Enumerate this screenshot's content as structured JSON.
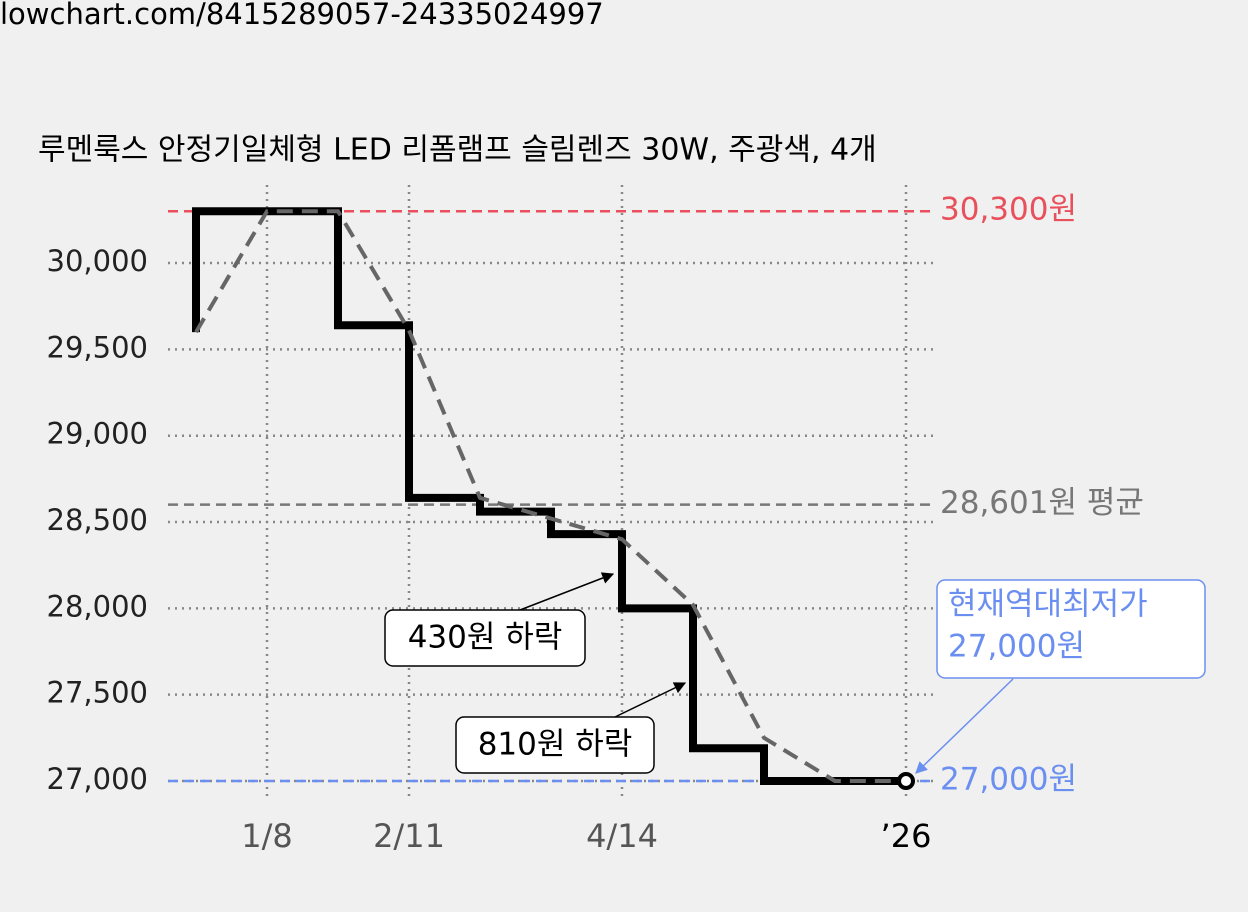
{
  "url": "lowchart.com/8415289057-24335024997",
  "chart_data": {
    "type": "line",
    "step": true,
    "title": "루멘룩스 안정기일체형 LED 리폼램프 슬림렌즈 30W, 주광색, 4개",
    "categories": [
      null,
      "1/8",
      null,
      "2/11",
      null,
      null,
      "4/14",
      null,
      null,
      null,
      "’26"
    ],
    "series": [
      {
        "color": "#000000",
        "values": [
          29600,
          30300,
          30300,
          29640,
          28640,
          28560,
          28430,
          28000,
          27190,
          27000,
          27000
        ]
      },
      {
        "color": "#666666",
        "values": [
          29600,
          30300,
          30300,
          29610,
          28640,
          28520,
          28400,
          28020,
          27250,
          27000,
          27000
        ]
      }
    ],
    "ylim": [
      26890,
      30452
    ],
    "yticks": [
      {
        "value": 27000,
        "label": "27,000"
      },
      {
        "value": 27500,
        "label": "27,500"
      },
      {
        "value": 28000,
        "label": "28,000"
      },
      {
        "value": 28500,
        "label": "28,500"
      },
      {
        "value": 29000,
        "label": "29,000"
      },
      {
        "value": 29500,
        "label": "29,500"
      },
      {
        "value": 30000,
        "label": "30,000"
      }
    ],
    "grid": true,
    "reference_lines": [
      {
        "value": 30300,
        "label": "30,300원",
        "color": "#e8505b"
      },
      {
        "value": 28601,
        "label": "28,601원 평균",
        "color": "#777777"
      },
      {
        "value": 27000,
        "label": "27,000원",
        "color": "#6b8ff0"
      }
    ],
    "annotations": [
      "430원 하락",
      "810원 하락"
    ],
    "callout": [
      "현재역대최저가",
      "27,000원"
    ]
  }
}
